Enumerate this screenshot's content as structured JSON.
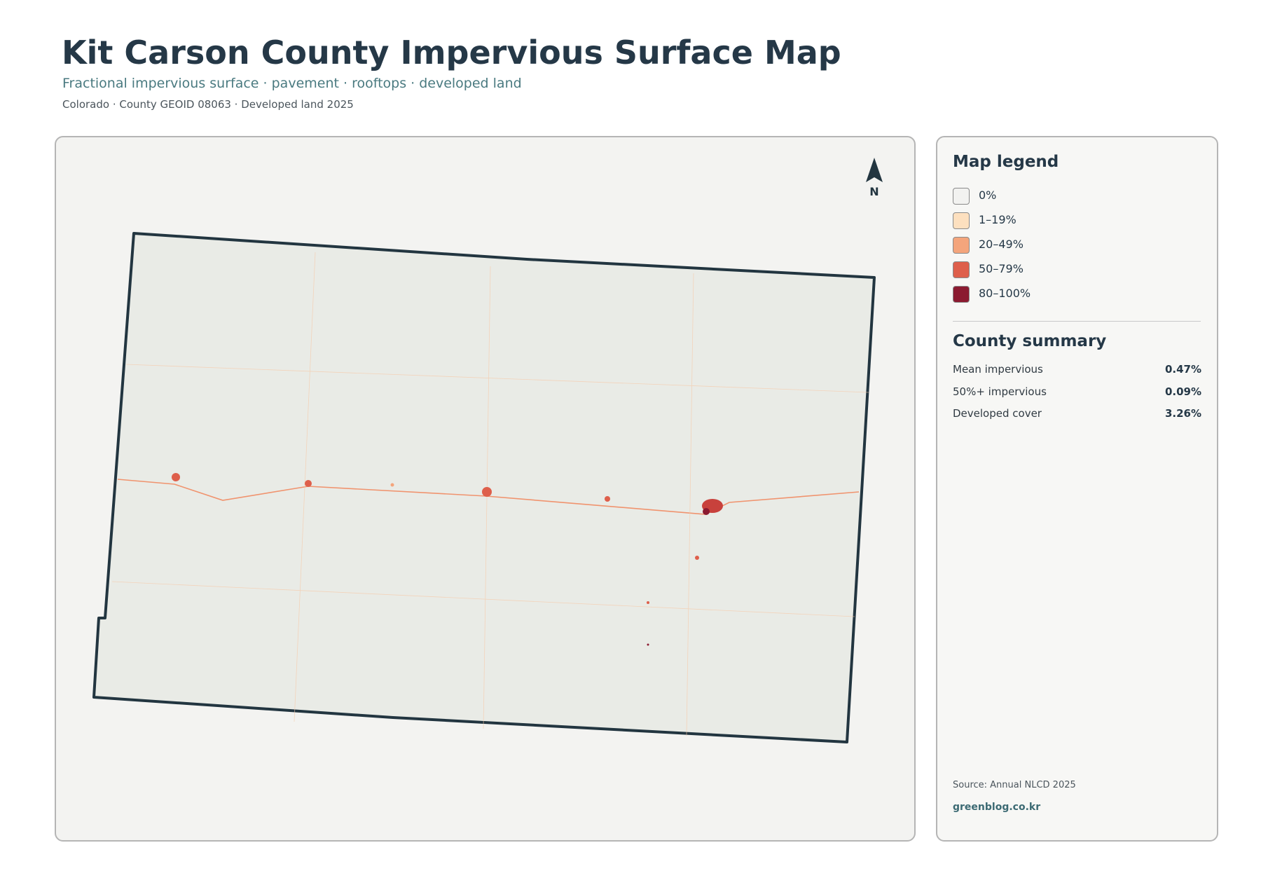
{
  "header": {
    "title": "Kit Carson County Impervious Surface Map",
    "subtitle": "Fractional impervious surface · pavement · rooftops · developed land",
    "meta": "Colorado · County GEOID 08063 · Developed land 2025"
  },
  "map": {
    "north_label": "N"
  },
  "legend": {
    "title": "Map legend",
    "items": [
      {
        "label": "0%",
        "color": "#f2f2f0"
      },
      {
        "label": "1–19%",
        "color": "#fde0bf"
      },
      {
        "label": "20–49%",
        "color": "#f4a57c"
      },
      {
        "label": "50–79%",
        "color": "#de5f4b"
      },
      {
        "label": "80–100%",
        "color": "#8b1a30"
      }
    ]
  },
  "summary": {
    "title": "County summary",
    "rows": [
      {
        "label": "Mean impervious",
        "value": "0.47%"
      },
      {
        "label": "50%+ impervious",
        "value": "0.09%"
      },
      {
        "label": "Developed cover",
        "value": "3.26%"
      }
    ]
  },
  "footer": {
    "source": "Source: Annual NLCD 2025",
    "credit": "greenblog.co.kr"
  }
}
